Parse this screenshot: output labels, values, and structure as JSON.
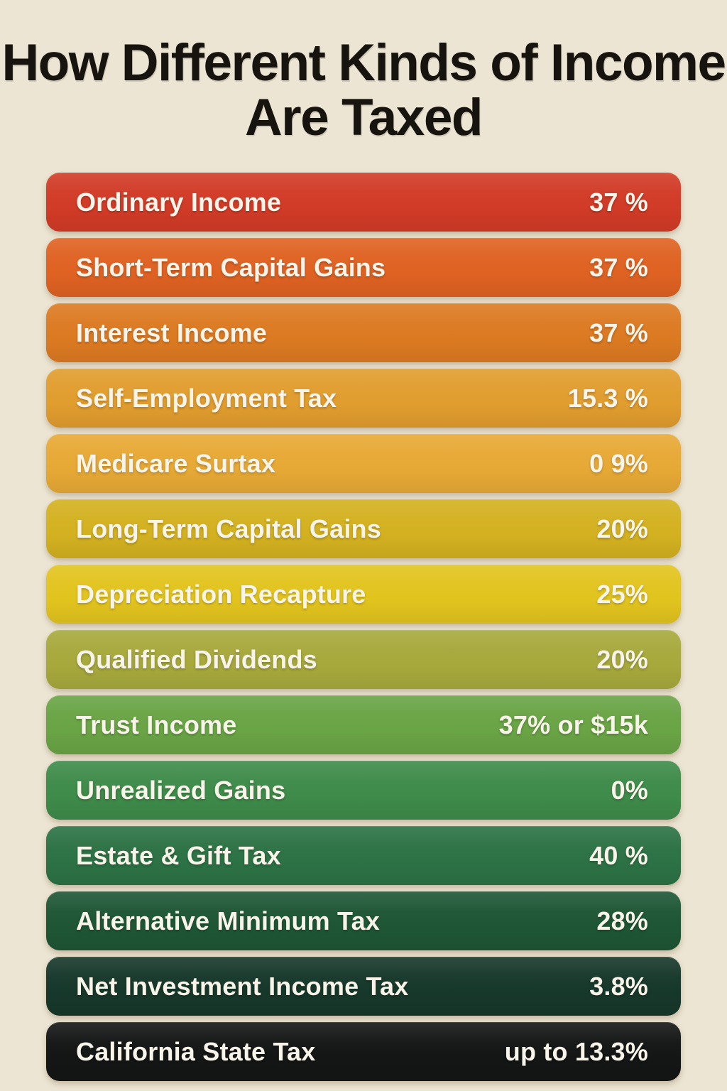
{
  "title": "How Different Kinds of Income Are Taxed",
  "colors": {
    "background": "#ece5d3",
    "title_text": "#17130e",
    "bar_text": "#f8f4ea"
  },
  "rows": [
    {
      "label": "Ordinary Income",
      "value": "37 %",
      "color": "#d13b27"
    },
    {
      "label": "Short-Term Capital Gains",
      "value": "37 %",
      "color": "#df6222"
    },
    {
      "label": "Interest Income",
      "value": "37 %",
      "color": "#dc7a22"
    },
    {
      "label": "Self-Employment Tax",
      "value": "15.3 %",
      "color": "#e19d2e"
    },
    {
      "label": "Medicare Surtax",
      "value": "0 9%",
      "color": "#e7a935"
    },
    {
      "label": "Long-Term Capital Gains",
      "value": "20%",
      "color": "#d3b120"
    },
    {
      "label": "Depreciation Recapture",
      "value": "25%",
      "color": "#e2c41e"
    },
    {
      "label": "Qualified Dividends",
      "value": "20%",
      "color": "#a7a93c"
    },
    {
      "label": "Trust Income",
      "value": "37% or $15k",
      "color": "#69a445"
    },
    {
      "label": "Unrealized Gains",
      "value": "0%",
      "color": "#3e8b4a"
    },
    {
      "label": "Estate & Gift Tax",
      "value": "40 %",
      "color": "#2c7245"
    },
    {
      "label": "Alternative Minimum Tax",
      "value": "28%",
      "color": "#1e5635"
    },
    {
      "label": "Net Investment Income Tax",
      "value": "3.8%",
      "color": "#16382a"
    },
    {
      "label": "California State Tax",
      "value": "up to 13.3%",
      "color": "#131614"
    }
  ],
  "chart_data": {
    "type": "bar",
    "title": "How Different Kinds of Income Are Taxed",
    "orientation": "horizontal-category-list",
    "legend_position": "none",
    "grid": false,
    "categories": [
      "Ordinary Income",
      "Short-Term Capital Gains",
      "Interest Income",
      "Self-Employment Tax",
      "Medicare Surtax",
      "Long-Term Capital Gains",
      "Depreciation Recapture",
      "Qualified Dividends",
      "Trust Income",
      "Unrealized Gains",
      "Estate & Gift Tax",
      "Alternative Minimum Tax",
      "Net Investment Income Tax",
      "California State Tax"
    ],
    "value_labels": [
      "37 %",
      "37 %",
      "37 %",
      "15.3 %",
      "0 9%",
      "20%",
      "25%",
      "20%",
      "37% or $15k",
      "0%",
      "40 %",
      "28%",
      "3.8%",
      "up to 13.3%"
    ],
    "values_percent": [
      37,
      37,
      37,
      15.3,
      0.9,
      20,
      25,
      20,
      37,
      0,
      40,
      28,
      3.8,
      13.3
    ],
    "bar_colors": [
      "#d13b27",
      "#df6222",
      "#dc7a22",
      "#e19d2e",
      "#e7a935",
      "#d3b120",
      "#e2c41e",
      "#a7a93c",
      "#69a445",
      "#3e8b4a",
      "#2c7245",
      "#1e5635",
      "#16382a",
      "#131614"
    ]
  }
}
